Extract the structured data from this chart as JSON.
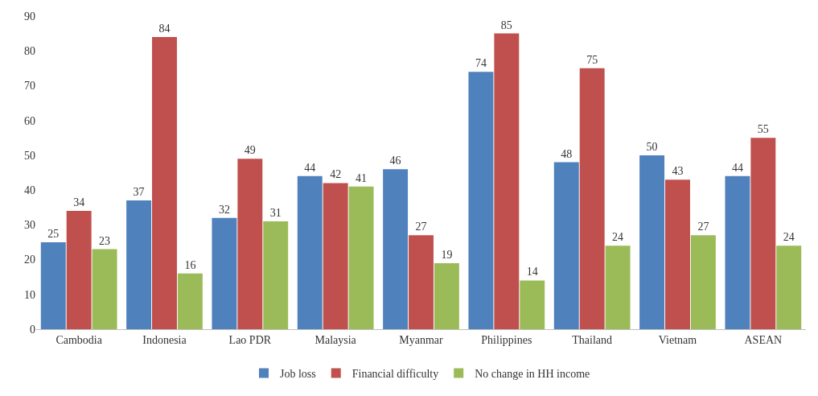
{
  "chart_data": {
    "type": "bar",
    "categories": [
      "Cambodia",
      "Indonesia",
      "Lao PDR",
      "Malaysia",
      "Myanmar",
      "Philippines",
      "Thailand",
      "Vietnam",
      "ASEAN"
    ],
    "series": [
      {
        "name": "Job loss",
        "color": "#4f81bd",
        "values": [
          25,
          37,
          32,
          44,
          46,
          74,
          48,
          50,
          44
        ]
      },
      {
        "name": "Financial difficulty",
        "color": "#c0504d",
        "values": [
          34,
          84,
          49,
          42,
          27,
          85,
          75,
          43,
          55
        ]
      },
      {
        "name": "No change in HH income",
        "color": "#9bbb59",
        "values": [
          23,
          16,
          31,
          41,
          19,
          14,
          24,
          27,
          24
        ]
      }
    ],
    "ylim": [
      0,
      90
    ],
    "yticks": [
      0,
      10,
      20,
      30,
      40,
      50,
      60,
      70,
      80,
      90
    ],
    "grid": false,
    "legend": "bottom",
    "data_labels": true
  }
}
